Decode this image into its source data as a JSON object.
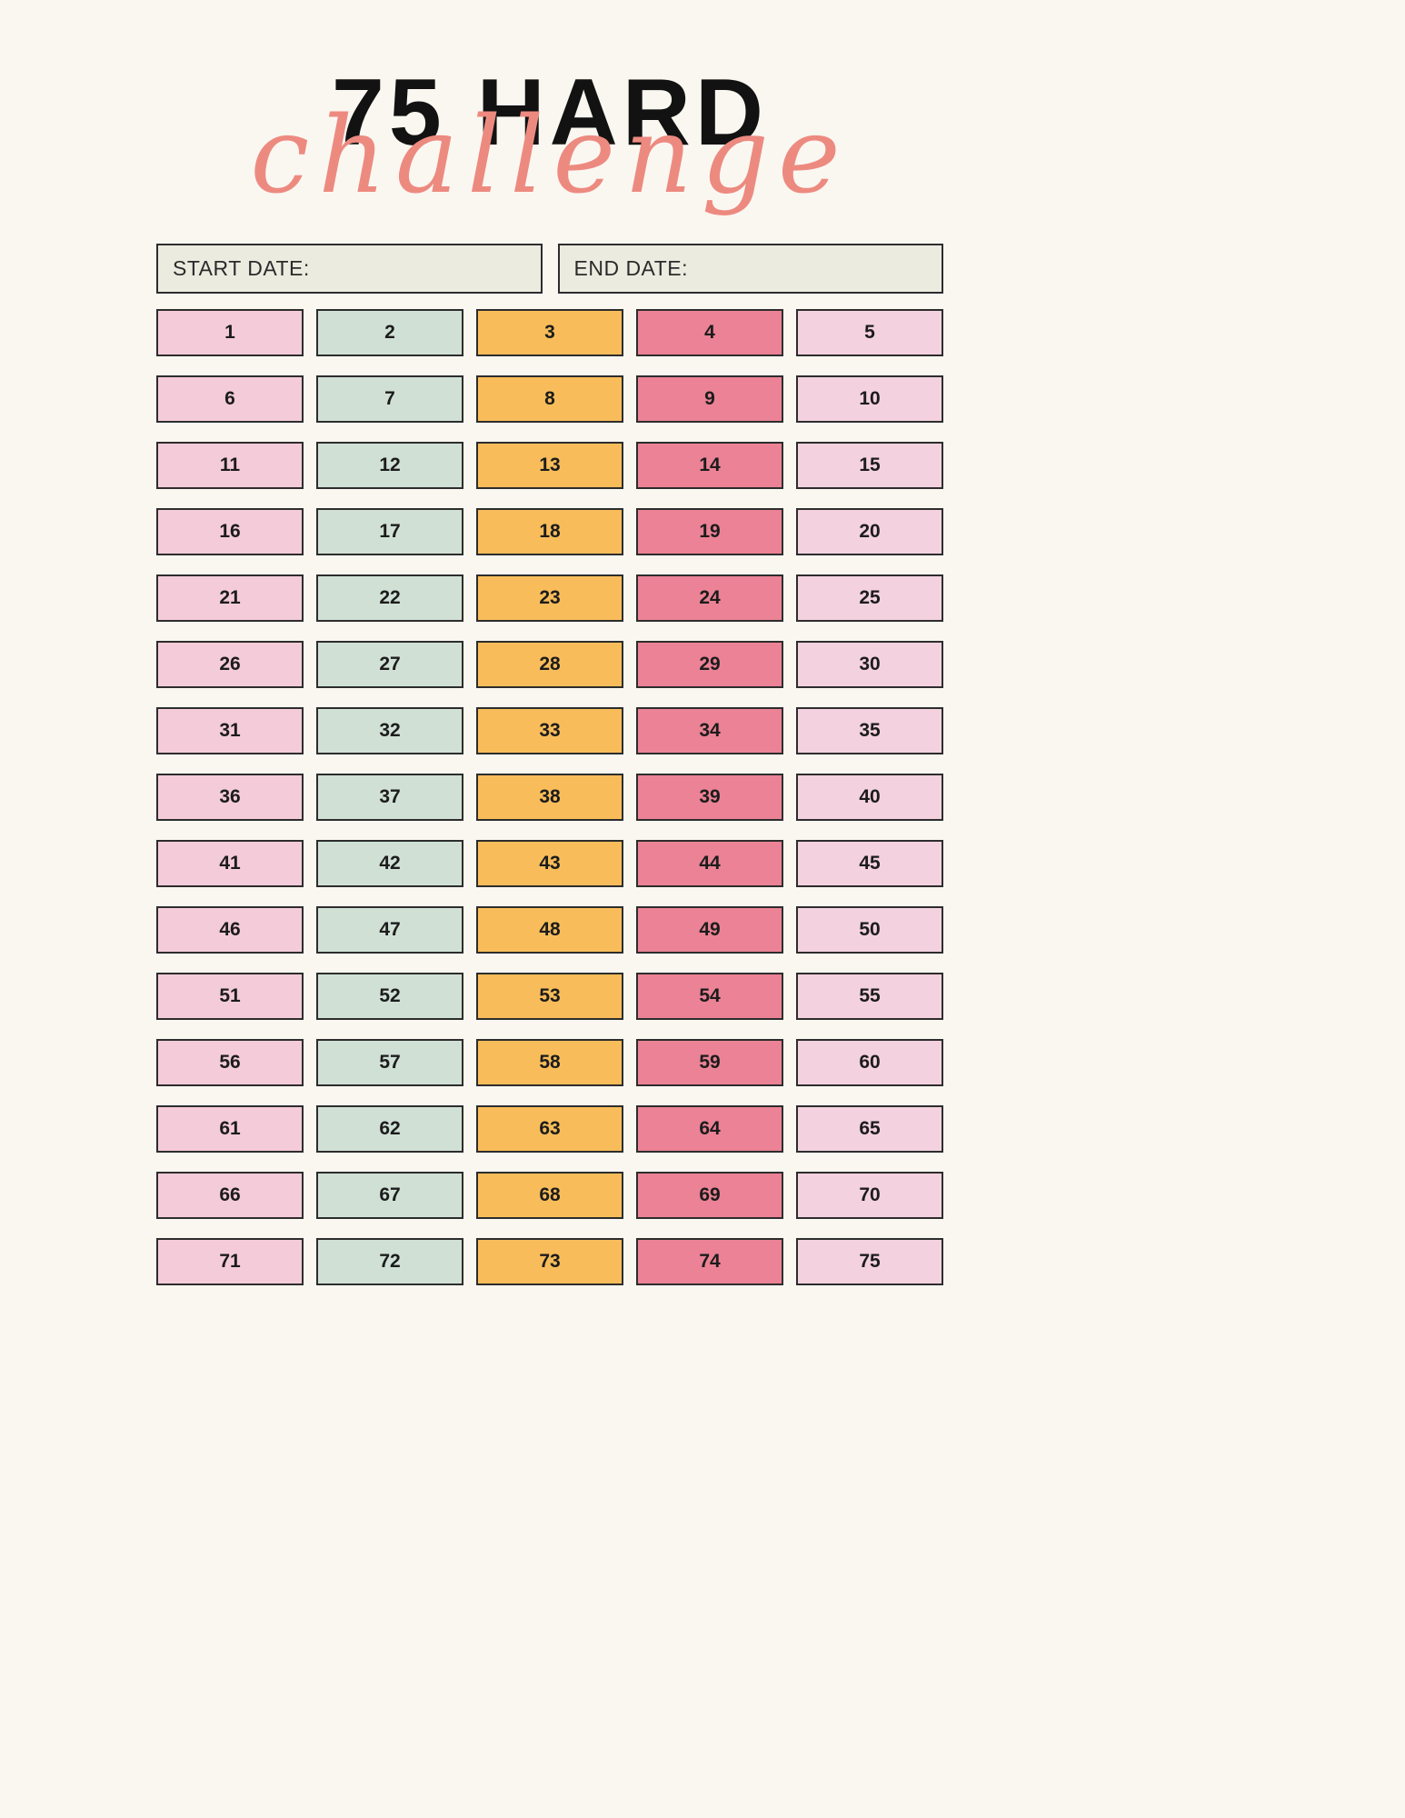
{
  "page": {
    "background": "#faf7f1"
  },
  "title": {
    "line1": "75 HARD",
    "line2": "challenge",
    "line1_color": "#121212",
    "line2_color": "#ed8a80"
  },
  "dates": {
    "start_label": "START DATE:",
    "end_label": "END DATE:",
    "start_value": "",
    "end_value": "",
    "box_background": "#ecebe0"
  },
  "grid": {
    "columns": 5,
    "rows": 15,
    "column_colors": [
      "#f4cbd9",
      "#d0e0d5",
      "#f8bd5a",
      "#eb8295",
      "#f3d1de"
    ],
    "border_color": "#2d2d2d",
    "days": [
      1,
      2,
      3,
      4,
      5,
      6,
      7,
      8,
      9,
      10,
      11,
      12,
      13,
      14,
      15,
      16,
      17,
      18,
      19,
      20,
      21,
      22,
      23,
      24,
      25,
      26,
      27,
      28,
      29,
      30,
      31,
      32,
      33,
      34,
      35,
      36,
      37,
      38,
      39,
      40,
      41,
      42,
      43,
      44,
      45,
      46,
      47,
      48,
      49,
      50,
      51,
      52,
      53,
      54,
      55,
      56,
      57,
      58,
      59,
      60,
      61,
      62,
      63,
      64,
      65,
      66,
      67,
      68,
      69,
      70,
      71,
      72,
      73,
      74,
      75
    ]
  }
}
